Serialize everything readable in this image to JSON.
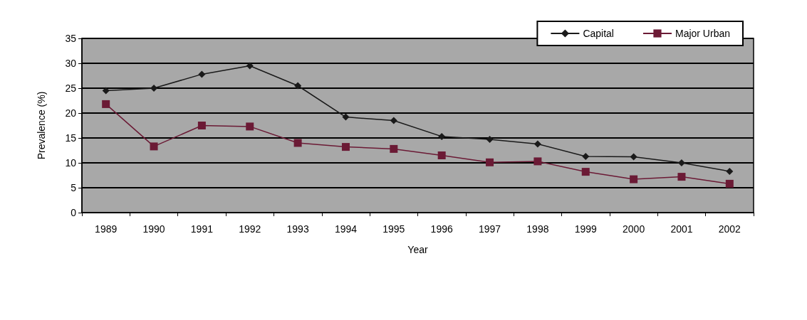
{
  "chart_data": {
    "type": "line",
    "xlabel": "Year",
    "ylabel": "Prevalence (%)",
    "categories": [
      "1989",
      "1990",
      "1991",
      "1992",
      "1993",
      "1994",
      "1995",
      "1996",
      "1997",
      "1998",
      "1999",
      "2000",
      "2001",
      "2002"
    ],
    "series": [
      {
        "name": "Capital",
        "color": "#1a1a1a",
        "marker": "diamond",
        "values": [
          24.5,
          25,
          27.8,
          29.5,
          25.5,
          19.2,
          18.5,
          15.3,
          14.7,
          13.8,
          11.3,
          11.2,
          10,
          8.3
        ]
      },
      {
        "name": "Major Urban",
        "color": "#6b1a35",
        "marker": "square",
        "values": [
          21.8,
          13.3,
          17.5,
          17.3,
          14,
          13.2,
          12.8,
          11.5,
          10.1,
          10.3,
          8.2,
          6.7,
          7.2,
          5.8
        ]
      }
    ],
    "ylim": [
      0,
      35
    ],
    "yticks": [
      0,
      5,
      10,
      15,
      20,
      25,
      30,
      35
    ],
    "grid": "y",
    "legend": "top right",
    "line_style": "solid"
  }
}
